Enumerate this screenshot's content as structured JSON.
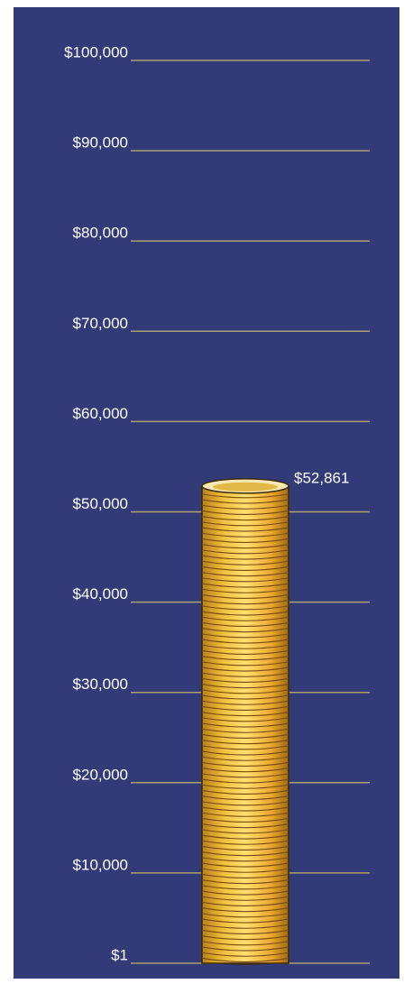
{
  "chart_data": {
    "type": "coin-stack",
    "values": [
      52861
    ],
    "value_labels": [
      "$52,861"
    ],
    "color": "#e8b830",
    "ylim": [
      0,
      100000
    ],
    "yticks": [
      {
        "value": 1,
        "label": "$1"
      },
      {
        "value": 10000,
        "label": "$10,000"
      },
      {
        "value": 20000,
        "label": "$20,000"
      },
      {
        "value": 30000,
        "label": "$30,000"
      },
      {
        "value": 40000,
        "label": "$40,000"
      },
      {
        "value": 50000,
        "label": "$50,000"
      },
      {
        "value": 60000,
        "label": "$60,000"
      },
      {
        "value": 70000,
        "label": "$70,000"
      },
      {
        "value": 80000,
        "label": "$80,000"
      },
      {
        "value": 90000,
        "label": "$90,000"
      },
      {
        "value": 100000,
        "label": "$100,000"
      }
    ],
    "grid": true
  }
}
